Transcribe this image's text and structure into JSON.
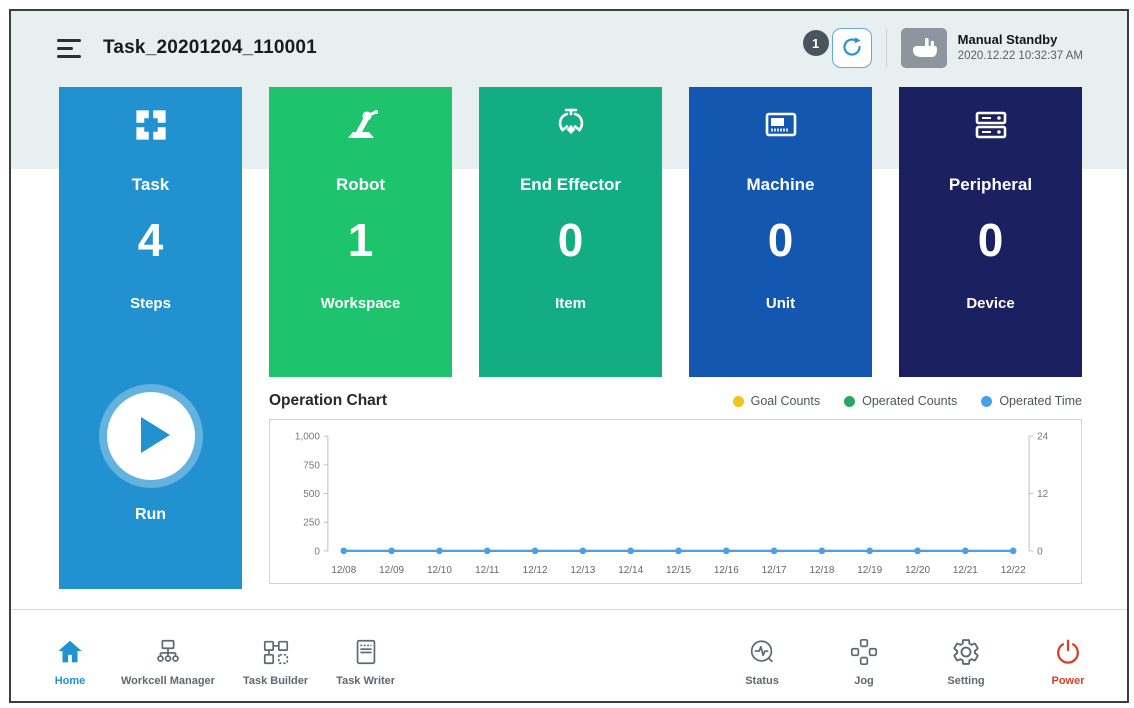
{
  "header": {
    "title": "Task_20201204_110001",
    "badge_count": "1",
    "mode_label": "Manual Standby",
    "timestamp": "2020.12.22 10:32:37 AM"
  },
  "cards": [
    {
      "title": "Task",
      "value": "4",
      "unit": "Steps",
      "run_label": "Run",
      "color": "#2191d0"
    },
    {
      "title": "Robot",
      "value": "1",
      "unit": "Workspace",
      "color": "#1ec36e"
    },
    {
      "title": "End Effector",
      "value": "0",
      "unit": "Item",
      "color": "#12ad83"
    },
    {
      "title": "Machine",
      "value": "0",
      "unit": "Unit",
      "color": "#1457b0"
    },
    {
      "title": "Peripheral",
      "value": "0",
      "unit": "Device",
      "color": "#1b2060"
    }
  ],
  "operation_chart": {
    "title": "Operation Chart",
    "legend": [
      {
        "label": "Goal Counts",
        "color": "#f2c318"
      },
      {
        "label": "Operated Counts",
        "color": "#27a85e"
      },
      {
        "label": "Operated Time",
        "color": "#4aa0e8"
      }
    ]
  },
  "chart_data": {
    "type": "line",
    "title": "Operation Chart",
    "x": [
      "12/08",
      "12/09",
      "12/10",
      "12/11",
      "12/12",
      "12/13",
      "12/14",
      "12/15",
      "12/16",
      "12/17",
      "12/18",
      "12/19",
      "12/20",
      "12/21",
      "12/22"
    ],
    "series": [
      {
        "name": "Goal Counts",
        "color": "#f2c318",
        "axis": "left",
        "values": [
          0,
          0,
          0,
          0,
          0,
          0,
          0,
          0,
          0,
          0,
          0,
          0,
          0,
          0,
          0
        ]
      },
      {
        "name": "Operated Counts",
        "color": "#27a85e",
        "axis": "left",
        "values": [
          0,
          0,
          0,
          0,
          0,
          0,
          0,
          0,
          0,
          0,
          0,
          0,
          0,
          0,
          0
        ]
      },
      {
        "name": "Operated Time",
        "color": "#4aa0e8",
        "axis": "right",
        "values": [
          0,
          0,
          0,
          0,
          0,
          0,
          0,
          0,
          0,
          0,
          0,
          0,
          0,
          0,
          0
        ]
      }
    ],
    "left_axis": {
      "label_ticks": [
        "1,000",
        "750",
        "500",
        "250",
        "0"
      ],
      "range": [
        0,
        1000
      ]
    },
    "right_axis": {
      "label_ticks": [
        "24",
        "12",
        "0"
      ],
      "range": [
        0,
        24
      ]
    },
    "grid": false,
    "legend_position": "top-right"
  },
  "nav": {
    "items_left": [
      {
        "label": "Home",
        "active": true
      },
      {
        "label": "Workcell Manager"
      },
      {
        "label": "Task Builder"
      },
      {
        "label": "Task Writer"
      }
    ],
    "items_right": [
      {
        "label": "Status"
      },
      {
        "label": "Jog"
      },
      {
        "label": "Setting"
      },
      {
        "label": "Power"
      }
    ]
  },
  "colors": {
    "accent_blue": "#2191d0",
    "power_red": "#e03a2a"
  }
}
